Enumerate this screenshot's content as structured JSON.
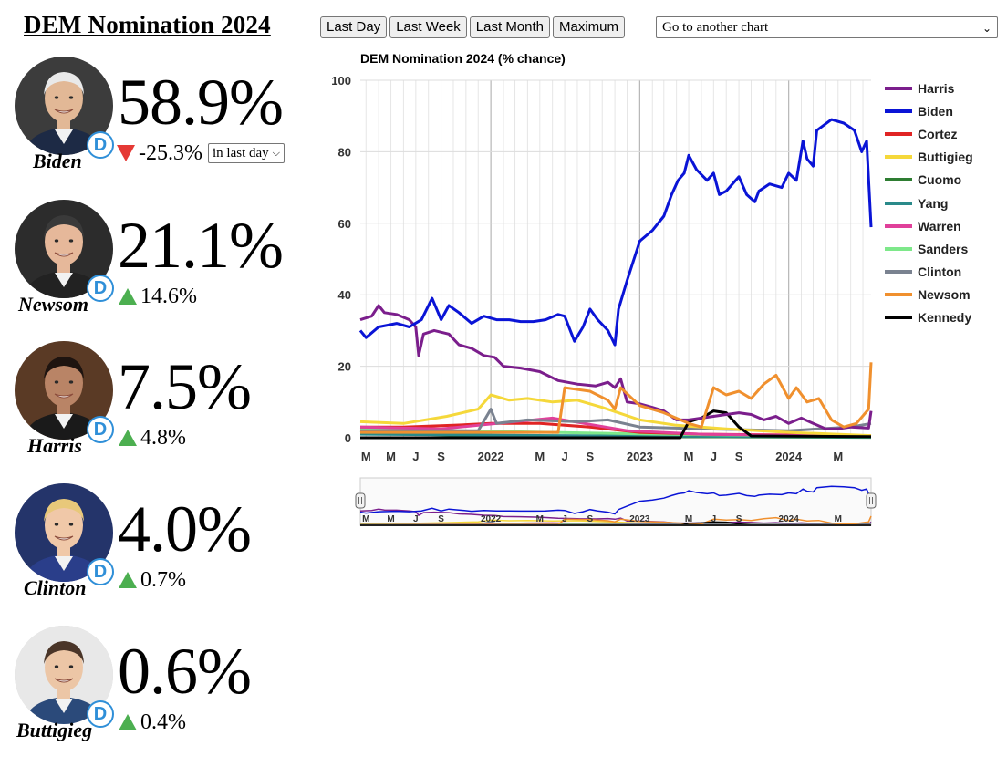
{
  "page": {
    "title": "DEM Nomination 2024"
  },
  "toolbar": {
    "buttons": [
      "Last Day",
      "Last Week",
      "Last Month",
      "Maximum"
    ],
    "select_value": "Go to another chart"
  },
  "candidates": [
    {
      "name": "Biden",
      "pct": "58.9%",
      "change": "-25.3%",
      "direction": "down",
      "party_badge": "D",
      "period": "in last day",
      "face": "#e2b896",
      "hair": "#e9e9e9",
      "bg": "#3c3c3c",
      "suit": "#1d2a45"
    },
    {
      "name": "Newsom",
      "pct": "21.1%",
      "change": "14.6%",
      "direction": "up",
      "party_badge": "D",
      "face": "#e6b89a",
      "hair": "#3a3a3a",
      "bg": "#2c2c2c",
      "suit": "#222222"
    },
    {
      "name": "Harris",
      "pct": "7.5%",
      "change": "4.8%",
      "direction": "up",
      "party_badge": "D",
      "face": "#b98466",
      "hair": "#1e1410",
      "bg": "#5a3a25",
      "suit": "#1a1a1a"
    },
    {
      "name": "Clinton",
      "pct": "4.0%",
      "change": "0.7%",
      "direction": "up",
      "party_badge": "D",
      "face": "#f0c8a8",
      "hair": "#e8c87a",
      "bg": "#24346a",
      "suit": "#2a3e8a"
    },
    {
      "name": "Buttigieg",
      "pct": "0.6%",
      "change": "0.4%",
      "direction": "up",
      "party_badge": "D",
      "face": "#ecc6a6",
      "hair": "#4a3528",
      "bg": "#e8e8e8",
      "suit": "#2b4a7a"
    }
  ],
  "chart_data": {
    "type": "line",
    "title": "DEM Nomination 2024 (% chance)",
    "xlabel": "",
    "ylabel": "",
    "ylim": [
      0,
      100
    ],
    "yticks": [
      0,
      20,
      40,
      60,
      80,
      100
    ],
    "xlim": [
      "2021-02-15",
      "2024-07-21"
    ],
    "xticks": [
      {
        "label": "M",
        "date": "2021-03-01"
      },
      {
        "label": "M",
        "date": "2021-05-01"
      },
      {
        "label": "J",
        "date": "2021-07-01"
      },
      {
        "label": "S",
        "date": "2021-09-01"
      },
      {
        "label": "2022",
        "date": "2022-01-01"
      },
      {
        "label": "M",
        "date": "2022-05-01"
      },
      {
        "label": "J",
        "date": "2022-07-01"
      },
      {
        "label": "S",
        "date": "2022-09-01"
      },
      {
        "label": "2023",
        "date": "2023-01-01"
      },
      {
        "label": "M",
        "date": "2023-05-01"
      },
      {
        "label": "J",
        "date": "2023-07-01"
      },
      {
        "label": "S",
        "date": "2023-09-01"
      },
      {
        "label": "2024",
        "date": "2024-01-01"
      },
      {
        "label": "M",
        "date": "2024-05-01"
      }
    ],
    "major_grid_dates": [
      "2022-01-01",
      "2023-01-01",
      "2024-01-01"
    ],
    "grid": true,
    "legend_position": "right",
    "series": [
      {
        "name": "Harris",
        "color": "#7b1e8c",
        "points": [
          [
            "2021-02-15",
            33
          ],
          [
            "2021-03-15",
            34
          ],
          [
            "2021-04-01",
            37
          ],
          [
            "2021-04-15",
            35
          ],
          [
            "2021-05-15",
            34.5
          ],
          [
            "2021-06-15",
            33
          ],
          [
            "2021-07-01",
            31
          ],
          [
            "2021-07-08",
            23
          ],
          [
            "2021-07-20",
            29
          ],
          [
            "2021-08-15",
            30
          ],
          [
            "2021-09-20",
            29
          ],
          [
            "2021-10-15",
            26
          ],
          [
            "2021-11-15",
            25
          ],
          [
            "2021-12-15",
            23
          ],
          [
            "2022-01-10",
            22.5
          ],
          [
            "2022-02-01",
            20
          ],
          [
            "2022-03-15",
            19.5
          ],
          [
            "2022-05-01",
            18.5
          ],
          [
            "2022-06-15",
            16
          ],
          [
            "2022-08-01",
            15
          ],
          [
            "2022-09-15",
            14.5
          ],
          [
            "2022-10-15",
            15.5
          ],
          [
            "2022-11-01",
            14
          ],
          [
            "2022-11-15",
            16.5
          ],
          [
            "2022-12-01",
            10
          ],
          [
            "2023-01-01",
            9.5
          ],
          [
            "2023-02-01",
            8.5
          ],
          [
            "2023-03-01",
            7.5
          ],
          [
            "2023-04-01",
            5
          ],
          [
            "2023-05-01",
            5
          ],
          [
            "2023-06-01",
            5.5
          ],
          [
            "2023-07-01",
            6
          ],
          [
            "2023-08-01",
            6.5
          ],
          [
            "2023-09-01",
            7
          ],
          [
            "2023-10-01",
            6.5
          ],
          [
            "2023-11-01",
            5
          ],
          [
            "2023-12-01",
            6
          ],
          [
            "2024-01-01",
            4
          ],
          [
            "2024-02-01",
            5.5
          ],
          [
            "2024-03-01",
            4
          ],
          [
            "2024-04-01",
            2.5
          ],
          [
            "2024-05-01",
            2.5
          ],
          [
            "2024-06-01",
            3
          ],
          [
            "2024-07-15",
            2.7
          ],
          [
            "2024-07-21",
            7.5
          ]
        ]
      },
      {
        "name": "Biden",
        "color": "#0a14d6",
        "points": [
          [
            "2021-02-15",
            30
          ],
          [
            "2021-03-01",
            28
          ],
          [
            "2021-04-01",
            31
          ],
          [
            "2021-05-15",
            32
          ],
          [
            "2021-06-15",
            31
          ],
          [
            "2021-07-15",
            33
          ],
          [
            "2021-08-10",
            39
          ],
          [
            "2021-09-01",
            33
          ],
          [
            "2021-09-20",
            37
          ],
          [
            "2021-10-15",
            35
          ],
          [
            "2021-11-15",
            32
          ],
          [
            "2021-12-15",
            34
          ],
          [
            "2022-01-15",
            33
          ],
          [
            "2022-02-15",
            33
          ],
          [
            "2022-03-15",
            32.5
          ],
          [
            "2022-04-15",
            32.5
          ],
          [
            "2022-05-15",
            33
          ],
          [
            "2022-06-15",
            34.5
          ],
          [
            "2022-07-01",
            34
          ],
          [
            "2022-07-25",
            27
          ],
          [
            "2022-08-15",
            31
          ],
          [
            "2022-09-01",
            36
          ],
          [
            "2022-09-20",
            33
          ],
          [
            "2022-10-15",
            30
          ],
          [
            "2022-11-01",
            26
          ],
          [
            "2022-11-10",
            36
          ],
          [
            "2022-12-01",
            44
          ],
          [
            "2023-01-01",
            55
          ],
          [
            "2023-02-01",
            58
          ],
          [
            "2023-03-01",
            62
          ],
          [
            "2023-03-20",
            68
          ],
          [
            "2023-04-05",
            72
          ],
          [
            "2023-04-20",
            74
          ],
          [
            "2023-05-01",
            79
          ],
          [
            "2023-05-20",
            75
          ],
          [
            "2023-06-15",
            72
          ],
          [
            "2023-07-01",
            74
          ],
          [
            "2023-07-15",
            68
          ],
          [
            "2023-08-01",
            69
          ],
          [
            "2023-09-01",
            73
          ],
          [
            "2023-09-20",
            68
          ],
          [
            "2023-10-10",
            66
          ],
          [
            "2023-10-20",
            69
          ],
          [
            "2023-11-15",
            71
          ],
          [
            "2023-12-15",
            70
          ],
          [
            "2024-01-01",
            74
          ],
          [
            "2024-01-20",
            72
          ],
          [
            "2024-02-05",
            83
          ],
          [
            "2024-02-15",
            78
          ],
          [
            "2024-03-01",
            76
          ],
          [
            "2024-03-10",
            86
          ],
          [
            "2024-04-15",
            89
          ],
          [
            "2024-05-15",
            88
          ],
          [
            "2024-06-10",
            86
          ],
          [
            "2024-06-28",
            80
          ],
          [
            "2024-07-10",
            83
          ],
          [
            "2024-07-21",
            58.9
          ]
        ]
      },
      {
        "name": "Cortez",
        "color": "#e02424",
        "points": [
          [
            "2021-02-15",
            3
          ],
          [
            "2021-06-01",
            3
          ],
          [
            "2021-10-01",
            3.5
          ],
          [
            "2022-01-01",
            4
          ],
          [
            "2022-05-01",
            4
          ],
          [
            "2022-09-01",
            3
          ],
          [
            "2023-01-01",
            1.5
          ],
          [
            "2023-06-01",
            1
          ],
          [
            "2024-01-01",
            0.8
          ],
          [
            "2024-07-21",
            0.6
          ]
        ]
      },
      {
        "name": "Buttigieg",
        "color": "#f5d83a",
        "points": [
          [
            "2021-02-15",
            4.5
          ],
          [
            "2021-06-01",
            4
          ],
          [
            "2021-09-15",
            6
          ],
          [
            "2021-12-01",
            8
          ],
          [
            "2022-01-01",
            12
          ],
          [
            "2022-02-15",
            10.5
          ],
          [
            "2022-04-01",
            11
          ],
          [
            "2022-06-01",
            10
          ],
          [
            "2022-08-01",
            10.5
          ],
          [
            "2022-10-01",
            8.5
          ],
          [
            "2023-01-01",
            5
          ],
          [
            "2023-04-01",
            3.5
          ],
          [
            "2023-08-01",
            2.5
          ],
          [
            "2024-01-01",
            1.5
          ],
          [
            "2024-07-21",
            0.6
          ]
        ]
      },
      {
        "name": "Cuomo",
        "color": "#2e7d32",
        "points": [
          [
            "2021-02-15",
            2
          ],
          [
            "2021-07-01",
            1
          ],
          [
            "2022-01-01",
            0.5
          ],
          [
            "2024-07-21",
            0.1
          ]
        ]
      },
      {
        "name": "Yang",
        "color": "#2a8a8a",
        "points": [
          [
            "2021-02-15",
            1
          ],
          [
            "2022-06-01",
            0.6
          ],
          [
            "2024-07-21",
            0.2
          ]
        ]
      },
      {
        "name": "Warren",
        "color": "#e0409a",
        "points": [
          [
            "2021-02-15",
            3
          ],
          [
            "2021-09-01",
            2.5
          ],
          [
            "2022-06-01",
            5.5
          ],
          [
            "2022-12-01",
            2
          ],
          [
            "2023-06-01",
            1
          ],
          [
            "2024-07-21",
            0.4
          ]
        ]
      },
      {
        "name": "Sanders",
        "color": "#7ee88a",
        "points": [
          [
            "2021-02-15",
            2.5
          ],
          [
            "2021-10-01",
            2
          ],
          [
            "2022-06-01",
            1.5
          ],
          [
            "2023-03-01",
            1
          ],
          [
            "2024-07-21",
            0.3
          ]
        ]
      },
      {
        "name": "Clinton",
        "color": "#7a8290",
        "points": [
          [
            "2021-02-15",
            2
          ],
          [
            "2021-12-01",
            2
          ],
          [
            "2022-01-01",
            8
          ],
          [
            "2022-01-15",
            4
          ],
          [
            "2022-04-01",
            5
          ],
          [
            "2022-08-01",
            4.5
          ],
          [
            "2022-10-15",
            5
          ],
          [
            "2023-01-01",
            3
          ],
          [
            "2023-06-01",
            2.5
          ],
          [
            "2024-01-01",
            2
          ],
          [
            "2024-06-01",
            3
          ],
          [
            "2024-07-21",
            4.0
          ]
        ]
      },
      {
        "name": "Newsom",
        "color": "#f0902e",
        "points": [
          [
            "2021-02-15",
            1.5
          ],
          [
            "2022-06-15",
            1.5
          ],
          [
            "2022-07-01",
            14
          ],
          [
            "2022-09-01",
            13
          ],
          [
            "2022-10-15",
            10.5
          ],
          [
            "2022-11-01",
            8
          ],
          [
            "2022-11-15",
            14
          ],
          [
            "2023-01-01",
            9
          ],
          [
            "2023-03-01",
            7
          ],
          [
            "2023-05-01",
            4
          ],
          [
            "2023-06-01",
            3
          ],
          [
            "2023-07-01",
            14
          ],
          [
            "2023-08-01",
            12
          ],
          [
            "2023-09-01",
            13
          ],
          [
            "2023-10-01",
            11
          ],
          [
            "2023-11-01",
            15
          ],
          [
            "2023-12-01",
            17.5
          ],
          [
            "2024-01-01",
            11
          ],
          [
            "2024-01-20",
            14
          ],
          [
            "2024-02-15",
            10
          ],
          [
            "2024-03-15",
            11
          ],
          [
            "2024-04-15",
            5
          ],
          [
            "2024-05-15",
            3
          ],
          [
            "2024-06-15",
            4
          ],
          [
            "2024-07-15",
            8
          ],
          [
            "2024-07-21",
            21.1
          ]
        ]
      },
      {
        "name": "Kennedy",
        "color": "#000000",
        "points": [
          [
            "2021-02-15",
            0
          ],
          [
            "2023-04-10",
            0
          ],
          [
            "2023-05-01",
            4.5
          ],
          [
            "2023-06-01",
            5.5
          ],
          [
            "2023-07-01",
            7.5
          ],
          [
            "2023-08-01",
            7
          ],
          [
            "2023-09-01",
            3
          ],
          [
            "2023-10-01",
            0.5
          ],
          [
            "2024-07-21",
            0.3
          ]
        ]
      }
    ]
  }
}
